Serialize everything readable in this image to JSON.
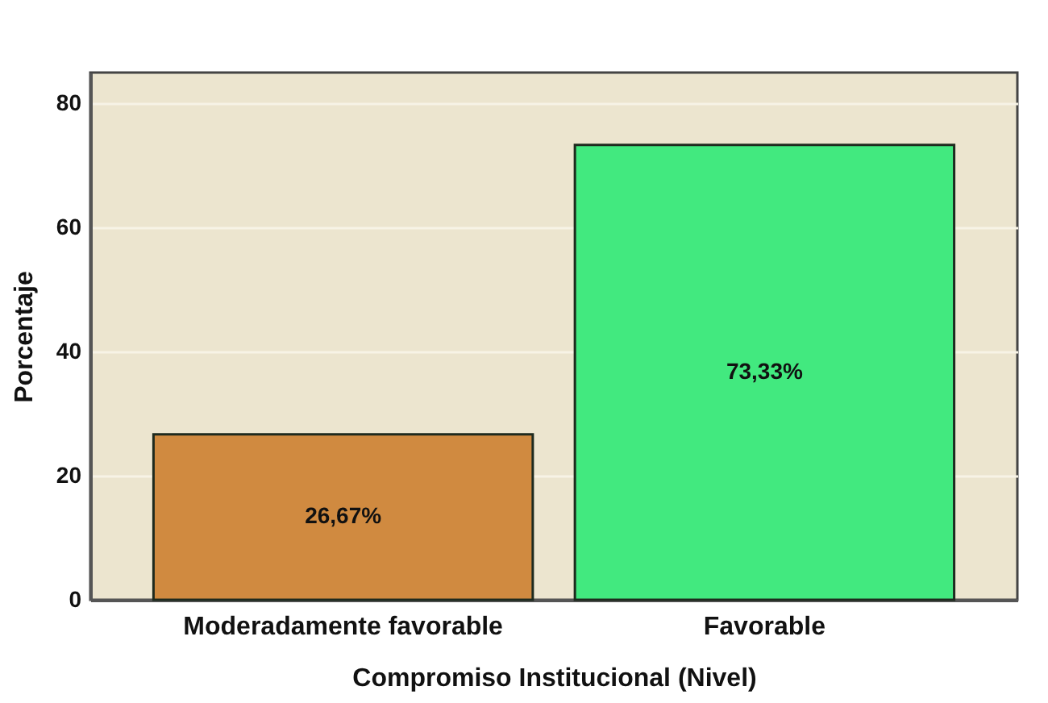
{
  "chart_data": {
    "type": "bar",
    "xlabel": "Compromiso Institucional (Nivel)",
    "ylabel": "Porcentaje",
    "categories": [
      "Moderadamente favorable",
      "Favorable"
    ],
    "values": [
      26.67,
      73.33
    ],
    "value_labels": [
      "26,67%",
      "73,33%"
    ],
    "colors": [
      "#d08a40",
      "#42e97f"
    ],
    "ylim": [
      0,
      85
    ],
    "yticks": [
      0,
      20,
      40,
      60,
      80
    ],
    "grid": "y"
  }
}
